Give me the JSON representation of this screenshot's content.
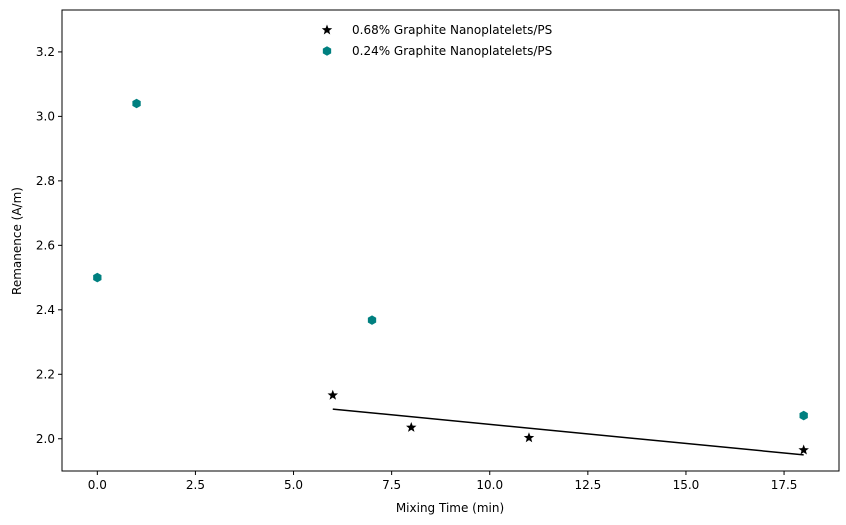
{
  "chart_data": {
    "type": "scatter",
    "title": "",
    "xlabel": "Mixing Time (min)",
    "ylabel": "Remanence (A/m)",
    "xlim": [
      -0.9,
      18.9
    ],
    "ylim": [
      1.9,
      3.33
    ],
    "xticks": [
      0.0,
      2.5,
      5.0,
      7.5,
      10.0,
      12.5,
      15.0,
      17.5
    ],
    "xtick_labels": [
      "0.0",
      "2.5",
      "5.0",
      "7.5",
      "10.0",
      "12.5",
      "15.0",
      "17.5"
    ],
    "yticks": [
      2.0,
      2.2,
      2.4,
      2.6,
      2.8,
      3.0,
      3.2
    ],
    "ytick_labels": [
      "2.0",
      "2.2",
      "2.4",
      "2.6",
      "2.8",
      "3.0",
      "3.2"
    ],
    "grid": false,
    "legend_position": "top-center",
    "series": [
      {
        "name": "0.68% Graphite Nanoplatelets/PS",
        "marker": "star",
        "color": "#000000",
        "points": [
          {
            "x": 6,
            "y": 2.135
          },
          {
            "x": 8,
            "y": 2.035
          },
          {
            "x": 11,
            "y": 2.003
          },
          {
            "x": 18,
            "y": 1.965
          }
        ]
      },
      {
        "name": "0.24% Graphite Nanoplatelets/PS",
        "marker": "hexagon",
        "color": "#008080",
        "points": [
          {
            "x": 0,
            "y": 2.5
          },
          {
            "x": 1,
            "y": 3.04
          },
          {
            "x": 7,
            "y": 2.368
          },
          {
            "x": 18,
            "y": 2.072
          }
        ]
      }
    ],
    "trend_line": {
      "color": "#000000",
      "points": [
        {
          "x": 6,
          "y": 2.092
        },
        {
          "x": 18,
          "y": 1.95
        }
      ]
    }
  }
}
